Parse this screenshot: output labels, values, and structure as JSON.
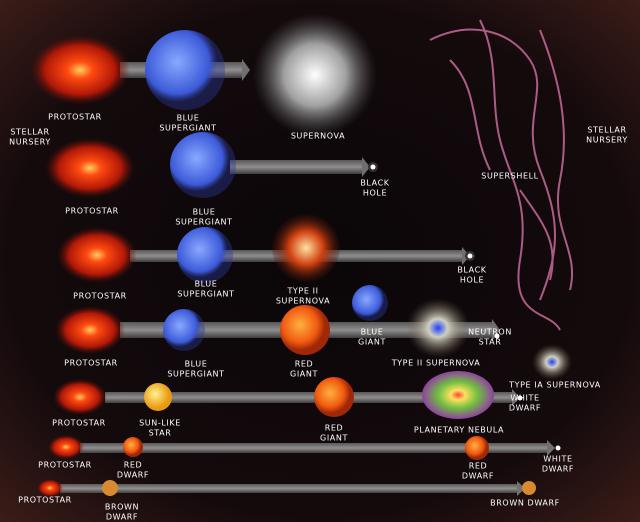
{
  "labels": [
    {
      "lines": [
        "PROTOSTAR"
      ]
    },
    {
      "lines": [
        "BLUE",
        "SUPERGIANT"
      ]
    },
    {
      "lines": [
        "SUPERNOVA"
      ]
    },
    {
      "lines": [
        "STELLAR",
        "NURSERY"
      ]
    },
    {
      "lines": [
        "STELLAR",
        "NURSERY"
      ]
    },
    {
      "lines": [
        "PROTOSTAR"
      ]
    },
    {
      "lines": [
        "BLUE",
        "SUPERGIANT"
      ]
    },
    {
      "lines": [
        "BLACK",
        "HOLE"
      ]
    },
    {
      "lines": [
        "SUPERSHELL"
      ]
    },
    {
      "lines": [
        "PROTOSTAR"
      ]
    },
    {
      "lines": [
        "BLUE",
        "SUPERGIANT"
      ]
    },
    {
      "lines": [
        "TYPE II",
        "SUPERNOVA"
      ]
    },
    {
      "lines": [
        "BLACK",
        "HOLE"
      ]
    },
    {
      "lines": [
        "PROTOSTAR"
      ]
    },
    {
      "lines": [
        "BLUE",
        "SUPERGIANT"
      ]
    },
    {
      "lines": [
        "RED",
        "GIANT"
      ]
    },
    {
      "lines": [
        "BLUE",
        "GIANT"
      ]
    },
    {
      "lines": [
        "TYPE II SUPERNOVA"
      ]
    },
    {
      "lines": [
        "NEUTRON",
        "STAR"
      ]
    },
    {
      "lines": [
        "PROTOSTAR"
      ]
    },
    {
      "lines": [
        "SUN-LIKE",
        "STAR"
      ]
    },
    {
      "lines": [
        "RED",
        "GIANT"
      ]
    },
    {
      "lines": [
        "PLANETARY NEBULA"
      ]
    },
    {
      "lines": [
        "TYPE IA SUPERNOVA"
      ]
    },
    {
      "lines": [
        "WHITE",
        "DWARF"
      ]
    },
    {
      "lines": [
        "PROTOSTAR"
      ]
    },
    {
      "lines": [
        "RED",
        "DWARF"
      ]
    },
    {
      "lines": [
        "RED",
        "DWARF"
      ]
    },
    {
      "lines": [
        "WHITE",
        "DWARF"
      ]
    },
    {
      "lines": [
        "PROTOSTAR"
      ]
    },
    {
      "lines": [
        "BROWN",
        "DWARF"
      ]
    },
    {
      "lines": [
        "BROWN DWARF"
      ]
    }
  ]
}
